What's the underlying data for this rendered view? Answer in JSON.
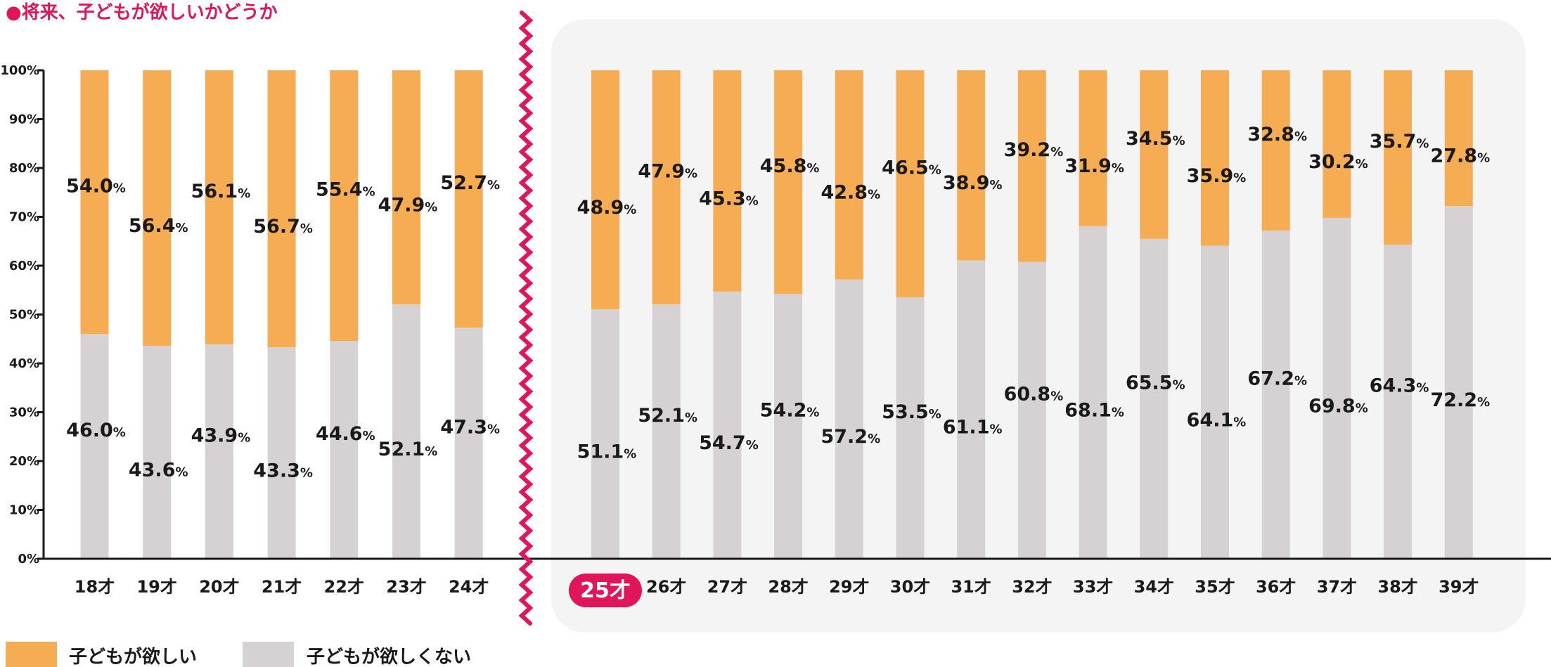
{
  "title": "●将来、子どもが欲しいかどうか",
  "colors": {
    "want": "#F5AC52",
    "not_want": "#D6D2D3",
    "accent": "#E0155A",
    "panel": "#F4F4F4",
    "axis": "#1a1a1a"
  },
  "highlight_category": "25才",
  "chart_data": {
    "type": "bar",
    "stacked": true,
    "percent_suffix": "%",
    "ylim": [
      0,
      100
    ],
    "y_ticks": [
      "0%",
      "10%",
      "20%",
      "30%",
      "40%",
      "50%",
      "60%",
      "70%",
      "80%",
      "90%",
      "100%"
    ],
    "legend_position": "bottom-left",
    "categories": [
      "18才",
      "19才",
      "20才",
      "21才",
      "22才",
      "23才",
      "24才",
      "25才",
      "26才",
      "27才",
      "28才",
      "29才",
      "30才",
      "31才",
      "32才",
      "33才",
      "34才",
      "35才",
      "36才",
      "37才",
      "38才",
      "39才"
    ],
    "series": [
      {
        "name": "子どもが欲しくない",
        "values": [
          46.0,
          43.6,
          43.9,
          43.3,
          44.6,
          52.1,
          47.3,
          51.1,
          52.1,
          54.7,
          54.2,
          57.2,
          53.5,
          61.1,
          60.8,
          68.1,
          65.5,
          64.1,
          67.2,
          69.8,
          64.3,
          72.2
        ]
      },
      {
        "name": "子どもが欲しい",
        "values": [
          54.0,
          56.4,
          56.1,
          56.7,
          55.4,
          47.9,
          52.7,
          48.9,
          47.9,
          45.3,
          45.8,
          42.8,
          46.5,
          38.9,
          39.2,
          31.9,
          34.5,
          35.9,
          32.8,
          30.2,
          35.7,
          27.8
        ]
      }
    ],
    "value_labels": {
      "not_want": [
        "46.0",
        "43.6",
        "43.9",
        "43.3",
        "44.6",
        "52.1",
        "47.3",
        "51.1",
        "52.1",
        "54.7",
        "54.2",
        "57.2",
        "53.5",
        "61.1",
        "60.8",
        "68.1",
        "65.5",
        "64.1",
        "67.2",
        "69.8",
        "64.3",
        "72.2"
      ],
      "want": [
        "54.0",
        "56.4",
        "56.1",
        "56.7",
        "55.4",
        "47.9",
        "52.7",
        "48.9",
        "47.9",
        "45.3",
        "45.8",
        "42.8",
        "46.5",
        "38.9",
        "39.2",
        "31.9",
        "34.5",
        "35.9",
        "32.8",
        "30.2",
        "35.7",
        "27.8"
      ]
    }
  },
  "legend": {
    "want_label": "子どもが欲しい",
    "not_want_label": "子どもが欲しくない"
  }
}
